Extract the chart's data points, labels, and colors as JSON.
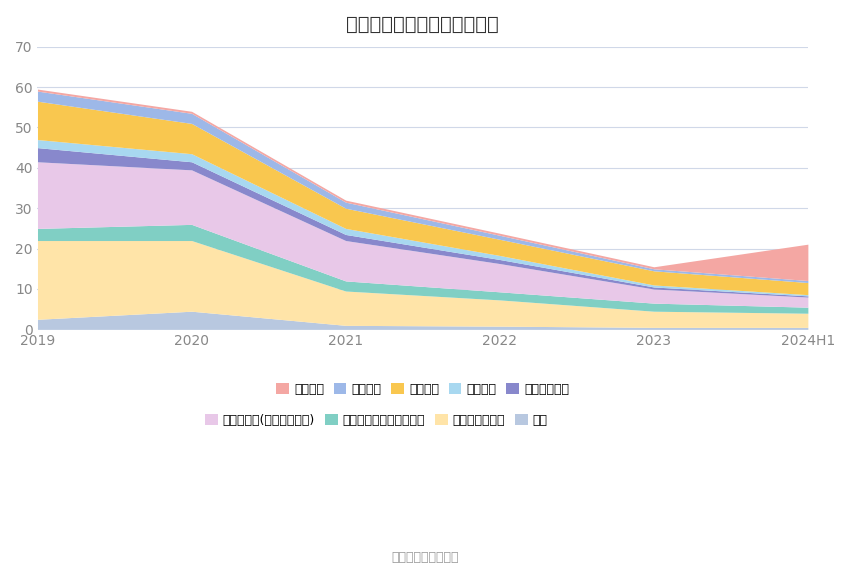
{
  "title": "历年主要负债堆积图（亿元）",
  "source": "数据来源：恒生聚源",
  "x_labels": [
    "2019",
    "2020",
    "2021",
    "2022",
    "2023",
    "2024H1"
  ],
  "series": [
    {
      "name": "其它",
      "color": "#B8C8E0",
      "values": [
        2.5,
        4.5,
        1.0,
        0.8,
        0.5,
        0.5
      ]
    },
    {
      "name": "长期应付款合计",
      "color": "#FFE4A8",
      "values": [
        19.5,
        17.5,
        8.5,
        6.5,
        4.0,
        3.5
      ]
    },
    {
      "name": "一年内到期的非流动负债",
      "color": "#80CFC4",
      "values": [
        3.0,
        4.0,
        2.5,
        2.0,
        2.0,
        1.5
      ]
    },
    {
      "name": "其他应付款(含利息和股利)",
      "color": "#E8C8E8",
      "values": [
        16.5,
        13.5,
        10.0,
        7.0,
        3.5,
        2.5
      ]
    },
    {
      "name": "应付职工薪酬",
      "color": "#8888CC",
      "values": [
        3.5,
        2.0,
        1.5,
        1.0,
        0.5,
        0.3
      ]
    },
    {
      "name": "合同负债",
      "color": "#A8D8F0",
      "values": [
        2.0,
        2.0,
        1.5,
        1.0,
        0.5,
        0.3
      ]
    },
    {
      "name": "应付账款",
      "color": "#F9C74F",
      "values": [
        9.5,
        7.5,
        5.0,
        4.0,
        3.5,
        3.0
      ]
    },
    {
      "name": "应付票据",
      "color": "#9DB8E8",
      "values": [
        2.5,
        2.5,
        1.5,
        1.0,
        0.5,
        0.5
      ]
    },
    {
      "name": "短期借款",
      "color": "#F4A7A3",
      "values": [
        0.5,
        0.5,
        0.5,
        0.5,
        0.5,
        9.0
      ]
    }
  ],
  "ylim": [
    0,
    70
  ],
  "yticks": [
    0,
    10,
    20,
    30,
    40,
    50,
    60,
    70
  ],
  "background_color": "#ffffff",
  "grid_color": "#d0d8e8",
  "title_fontsize": 14,
  "tick_fontsize": 10,
  "legend_fontsize": 9
}
